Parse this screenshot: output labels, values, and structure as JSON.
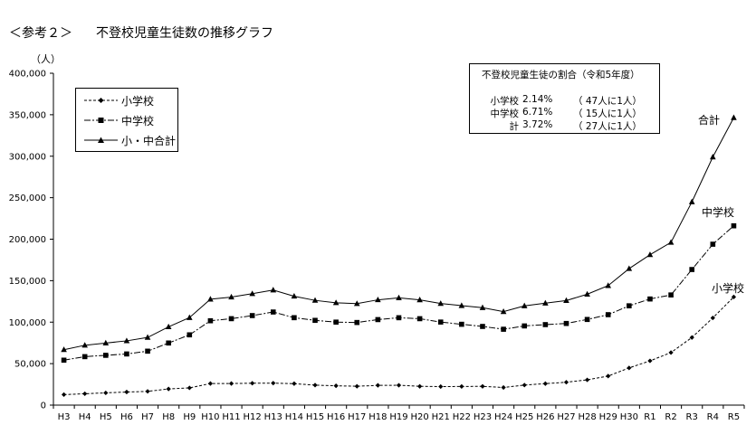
{
  "heading": {
    "tag": "＜参考２＞",
    "text": "不登校児童生徒数の推移グラフ"
  },
  "colors": {
    "axis": "#000000",
    "series": "#000000",
    "background": "#ffffff"
  },
  "chart_data": {
    "type": "line",
    "unit_label": "（人）",
    "categories": [
      "H3",
      "H4",
      "H5",
      "H6",
      "H7",
      "H8",
      "H9",
      "H10",
      "H11",
      "H12",
      "H13",
      "H14",
      "H15",
      "H16",
      "H17",
      "H18",
      "H19",
      "H20",
      "H21",
      "H22",
      "H23",
      "H24",
      "H25",
      "H26",
      "H27",
      "H28",
      "H29",
      "H30",
      "R1",
      "R2",
      "R3",
      "R4",
      "R5"
    ],
    "y_ticks": [
      "0",
      "50,000",
      "100,000",
      "150,000",
      "200,000",
      "250,000",
      "300,000",
      "350,000",
      "400,000"
    ],
    "ylim": [
      0,
      400000
    ],
    "grid": false,
    "legend_position": "top-left",
    "series": [
      {
        "name": "小学校",
        "label": "小学校",
        "line": "dashed",
        "marker": "diamond",
        "values": [
          12645,
          13710,
          14769,
          15786,
          16569,
          19498,
          20765,
          26017,
          26047,
          26373,
          26511,
          25869,
          24077,
          23318,
          22709,
          23825,
          23927,
          22652,
          22327,
          22463,
          22622,
          21243,
          24175,
          25864,
          27583,
          30448,
          35032,
          44841,
          53350,
          63350,
          81498,
          105112,
          130370
        ]
      },
      {
        "name": "中学校",
        "label": "中学校",
        "line": "dashdot",
        "marker": "square",
        "values": [
          54172,
          58421,
          60039,
          61663,
          65022,
          74853,
          84701,
          101675,
          104180,
          107913,
          112211,
          105383,
          102149,
          100040,
          99578,
          103069,
          105328,
          104153,
          100105,
          97428,
          94836,
          91446,
          95442,
          97033,
          98408,
          103235,
          108999,
          119687,
          127922,
          132777,
          163442,
          193936,
          216112
        ]
      },
      {
        "name": "小・中合計",
        "label": "合計",
        "line": "solid",
        "marker": "triangle",
        "values": [
          66817,
          72131,
          74808,
          77449,
          81591,
          94351,
          105466,
          127692,
          130227,
          134286,
          138722,
          131252,
          126226,
          123358,
          122287,
          126894,
          129255,
          126805,
          122432,
          119891,
          117458,
          112689,
          119617,
          122897,
          125991,
          133683,
          144031,
          164528,
          181272,
          196127,
          244940,
          299048,
          346482
        ]
      }
    ],
    "ratio_box": {
      "title": "不登校児童生徒の割合（令和5年度）",
      "rows": [
        {
          "label": "小学校",
          "value": "2.14%",
          "detail": "（ 47人に1人）"
        },
        {
          "label": "中学校",
          "value": "6.71%",
          "detail": "（ 15人に1人）"
        },
        {
          "label": "計",
          "value": "3.72%",
          "detail": "（ 27人に1人）"
        }
      ]
    }
  }
}
